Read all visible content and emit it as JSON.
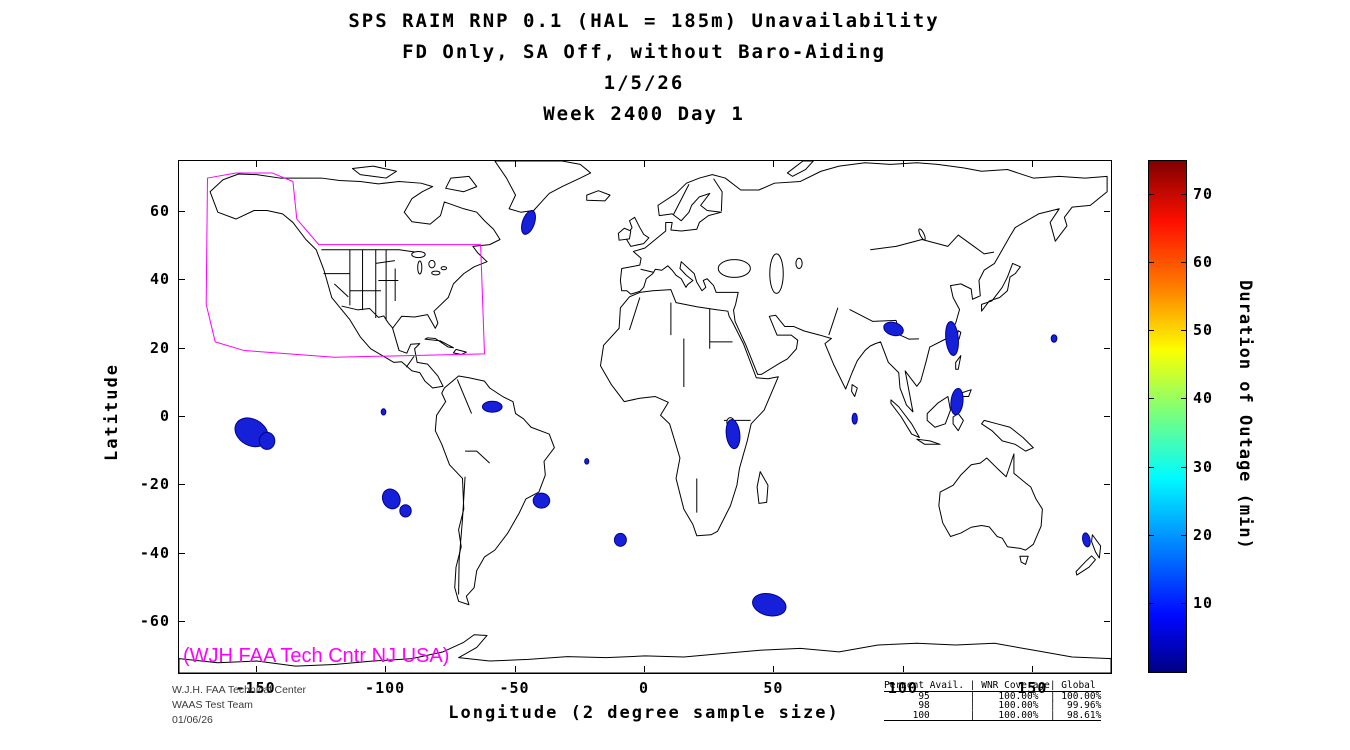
{
  "title": {
    "line1": "SPS RAIM RNP 0.1 (HAL = 185m) Unavailability",
    "line2": "FD Only, SA Off, without Baro-Aiding",
    "line3": "1/5/26",
    "line4": "Week 2400 Day 1"
  },
  "axes": {
    "x_label": "Longitude (2 degree sample size)",
    "y_label": "Latitude",
    "x_ticks": [
      -150,
      -100,
      -50,
      0,
      50,
      100,
      150
    ],
    "y_ticks": [
      60,
      40,
      20,
      0,
      -20,
      -40,
      -60
    ],
    "x_range": [
      -180,
      180
    ],
    "y_range": [
      -75,
      75
    ]
  },
  "colorbar": {
    "label": "Duration of Outage (min)",
    "ticks": [
      10,
      20,
      30,
      40,
      50,
      60,
      70
    ],
    "range": [
      0,
      75
    ]
  },
  "annotations": {
    "coverage_label": "(WJH FAA Tech Cntr NJ USA)",
    "coverage_color": "#ff00ff"
  },
  "footer": {
    "org_line1": "W.J.H. FAA Technical Center",
    "org_line2": "WAAS Test Team",
    "org_line3": "01/06/26"
  },
  "availability_table": {
    "headers": [
      "Percent Avail.",
      "WNR Coverage",
      "Global"
    ],
    "rows": [
      [
        "95",
        "100.00%",
        "100.00%"
      ],
      [
        "98",
        "100.00%",
        "99.96%"
      ],
      [
        "100",
        "100.00%",
        "98.61%"
      ]
    ]
  },
  "chart_data": {
    "type": "heatmap",
    "subtype": "world-map-outage-plot",
    "projection": "equirectangular",
    "lon_range": [
      -180,
      180
    ],
    "lat_range": [
      -75,
      75
    ],
    "colorbar": {
      "label": "Duration of Outage (min)",
      "min": 0,
      "max": 75,
      "ticks": [
        10,
        20,
        30,
        40,
        50,
        60,
        70
      ],
      "colormap": "jet"
    },
    "outage_style": {
      "fill": "#1520d8",
      "stroke": "#000090"
    },
    "waas_outline_color": "#ff00ff",
    "waas_outline": [
      [
        -169,
        70
      ],
      [
        -158,
        71.5
      ],
      [
        -144,
        71.5
      ],
      [
        -136,
        69
      ],
      [
        -134.5,
        58
      ],
      [
        -126,
        50.5
      ],
      [
        -63.5,
        50.5
      ],
      [
        -62,
        18.5
      ],
      [
        -120,
        17.5
      ],
      [
        -155,
        19.5
      ],
      [
        -166,
        22
      ],
      [
        -169.5,
        33
      ]
    ],
    "outage_regions": [
      {
        "name": "south-greenland",
        "lon": -45,
        "lat": 57,
        "rx": 2.2,
        "ry": 3.8,
        "rot": -30,
        "duration_min": 10
      },
      {
        "name": "equatorial-pacific",
        "lon": -152,
        "lat": -4.5,
        "rx": 6.5,
        "ry": 4.0,
        "rot": -15,
        "duration_min": 12
      },
      {
        "name": "equatorial-pacific-2",
        "lon": -146,
        "lat": -7,
        "rx": 3.0,
        "ry": 2.5,
        "rot": 0,
        "duration_min": 10
      },
      {
        "name": "east-pacific-dot",
        "lon": -101,
        "lat": 1.5,
        "rx": 0.9,
        "ry": 0.9,
        "rot": 0,
        "duration_min": 5
      },
      {
        "name": "north-brazil",
        "lon": -59,
        "lat": 3,
        "rx": 3.8,
        "ry": 1.6,
        "rot": 0,
        "duration_min": 10
      },
      {
        "name": "southeast-pacific",
        "lon": -98,
        "lat": -24,
        "rx": 3.5,
        "ry": 2.8,
        "rot": -20,
        "duration_min": 12
      },
      {
        "name": "southeast-pacific-2",
        "lon": -92.5,
        "lat": -27.5,
        "rx": 2.2,
        "ry": 1.8,
        "rot": 0,
        "duration_min": 10
      },
      {
        "name": "brazil-coast",
        "lon": -40,
        "lat": -24.5,
        "rx": 3.2,
        "ry": 2.2,
        "rot": 0,
        "duration_min": 10
      },
      {
        "name": "south-atlantic-dot",
        "lon": -22.5,
        "lat": -13,
        "rx": 0.8,
        "ry": 0.8,
        "rot": 0,
        "duration_min": 5
      },
      {
        "name": "south-atlantic",
        "lon": -9.5,
        "lat": -36,
        "rx": 2.3,
        "ry": 1.9,
        "rot": 0,
        "duration_min": 10
      },
      {
        "name": "east-africa",
        "lon": 34,
        "lat": -5,
        "rx": 2.6,
        "ry": 4.3,
        "rot": 10,
        "duration_min": 12
      },
      {
        "name": "southern-indian-ocean",
        "lon": 48,
        "lat": -55,
        "rx": 6.5,
        "ry": 3.2,
        "rot": -8,
        "duration_min": 12
      },
      {
        "name": "indian-ocean-dot",
        "lon": 81,
        "lat": -0.5,
        "rx": 1.0,
        "ry": 1.6,
        "rot": 0,
        "duration_min": 5
      },
      {
        "name": "myanmar",
        "lon": 96,
        "lat": 25.8,
        "rx": 3.8,
        "ry": 1.9,
        "rot": -10,
        "duration_min": 10
      },
      {
        "name": "taiwan-strait",
        "lon": 118.6,
        "lat": 23,
        "rx": 2.4,
        "ry": 5.0,
        "rot": 8,
        "duration_min": 12
      },
      {
        "name": "philippines",
        "lon": 120.5,
        "lat": 4.5,
        "rx": 2.3,
        "ry": 3.9,
        "rot": -10,
        "duration_min": 10
      },
      {
        "name": "west-pacific-dot",
        "lon": 158,
        "lat": 23,
        "rx": 1.1,
        "ry": 1.1,
        "rot": 0,
        "duration_min": 5
      },
      {
        "name": "new-zealand",
        "lon": 170.5,
        "lat": -36,
        "rx": 1.4,
        "ry": 2.1,
        "rot": 20,
        "duration_min": 8
      }
    ]
  }
}
